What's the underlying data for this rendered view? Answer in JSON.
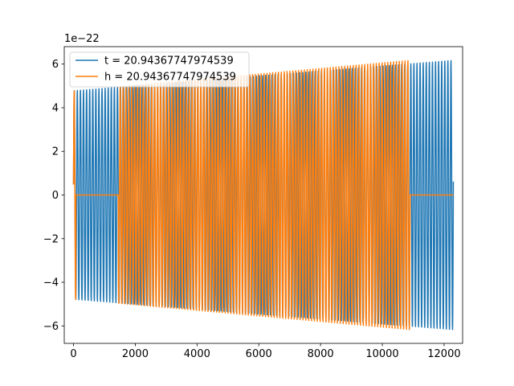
{
  "chart_data": {
    "type": "line",
    "title": "",
    "xlabel": "",
    "ylabel": "",
    "y_offset_label": "1e−22",
    "xlim": [
      -300,
      12600
    ],
    "ylim": [
      -6.8,
      6.8
    ],
    "x_ticks": [
      0,
      2000,
      4000,
      6000,
      8000,
      10000,
      12000
    ],
    "x_tick_labels": [
      "0",
      "2000",
      "4000",
      "6000",
      "8000",
      "10000",
      "12000"
    ],
    "y_ticks": [
      -6,
      -4,
      -2,
      0,
      2,
      4,
      6
    ],
    "y_tick_labels": [
      "−6",
      "−4",
      "−2",
      "0",
      "2",
      "4",
      "6"
    ],
    "grid": false,
    "legend_position": "upper-left",
    "series": [
      {
        "name": "t = 20.94367747974539",
        "color": "#1f77b4",
        "x_start": 0,
        "x_end": 12300,
        "amplitude_start": 4.8,
        "amplitude_end": 6.2,
        "cycles": 123,
        "values_in": "1e-22"
      },
      {
        "name": "h = 20.94367747974539",
        "color": "#ff7f0e",
        "x_start": 0,
        "x_end": 10900,
        "amplitude_start": 4.8,
        "amplitude_end": 6.2,
        "cycles": 117,
        "flat_segments": [
          [
            70,
            1450
          ],
          [
            10900,
            12300
          ]
        ],
        "values_in": "1e-22"
      }
    ]
  }
}
